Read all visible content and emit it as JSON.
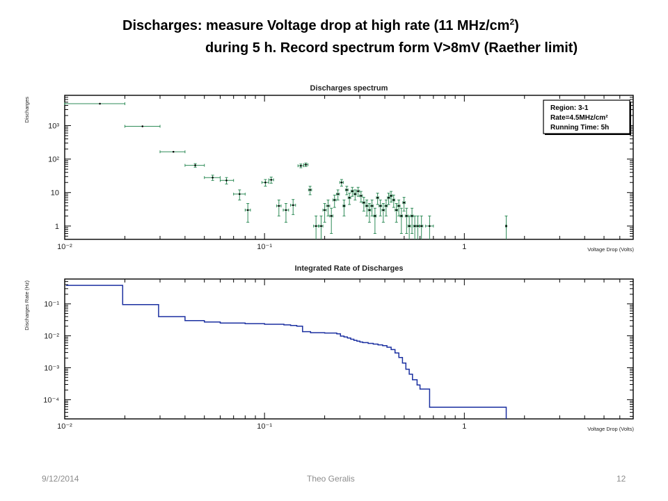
{
  "slide": {
    "title_line1_main": "Discharges: measure Voltage drop at high rate (11 MHz/cm",
    "title_line1_sup": "2",
    "title_line1_end": ")",
    "title_line2": "during 5 h. Record spectrum form V>8mV (Raether limit)",
    "footer_date": "9/12/2014",
    "footer_author": "Theo Geralis",
    "footer_page": "12"
  },
  "colors": {
    "spectrum_marker": "#2e8b57",
    "integrated_line": "#1a2fa0",
    "frame": "#000000"
  },
  "chart_data": [
    {
      "type": "scatter",
      "title": "Discharges spectrum",
      "xlabel": "Voltage Drop (Volts)",
      "ylabel": "Discharges",
      "xscale": "log",
      "yscale": "log",
      "xlim": [
        0.01,
        7
      ],
      "ylim": [
        0.4,
        8000
      ],
      "x_tick_labels": [
        "10⁻²",
        "10⁻¹",
        "1"
      ],
      "y_tick_labels": [
        "1",
        "10",
        "10²",
        "10³"
      ],
      "legend": {
        "placement": "top-right",
        "lines": [
          "Region: 3-1",
          "Rate=4.5MHz/cm²",
          "Running Time: 5h"
        ]
      },
      "points": [
        {
          "x": 0.015,
          "y": 4500,
          "xerr": [
            0.005,
            0.005
          ]
        },
        {
          "x": 0.0245,
          "y": 950,
          "xerr": [
            0.0045,
            0.0055
          ]
        },
        {
          "x": 0.035,
          "y": 165,
          "xerr": [
            0.005,
            0.005
          ]
        },
        {
          "x": 0.045,
          "y": 65,
          "xerr": [
            0.005,
            0.005
          ],
          "yerr": [
            8,
            8
          ]
        },
        {
          "x": 0.055,
          "y": 28,
          "xerr": [
            0.005,
            0.005
          ],
          "yerr": [
            5,
            5
          ]
        },
        {
          "x": 0.0645,
          "y": 23,
          "xerr": [
            0.0045,
            0.0055
          ],
          "yerr": [
            5,
            5
          ]
        },
        {
          "x": 0.075,
          "y": 9,
          "xerr": [
            0.005,
            0.005
          ],
          "yerr": [
            3,
            3
          ]
        },
        {
          "x": 0.0825,
          "y": 3,
          "xerr": [
            0.0025,
            0.0025
          ],
          "yerr": [
            1.7,
            1.7
          ]
        },
        {
          "x": 0.101,
          "y": 20,
          "xerr": [
            0.004,
            0.004
          ],
          "yerr": [
            4.5,
            4.5
          ]
        },
        {
          "x": 0.108,
          "y": 24,
          "xerr": [
            0.003,
            0.003
          ],
          "yerr": [
            5,
            5
          ]
        },
        {
          "x": 0.118,
          "y": 4,
          "xerr": [
            0.003,
            0.003
          ],
          "yerr": [
            2,
            2
          ]
        },
        {
          "x": 0.128,
          "y": 3,
          "xerr": [
            0.004,
            0.004
          ],
          "yerr": [
            1.7,
            1.7
          ]
        },
        {
          "x": 0.139,
          "y": 4.2,
          "xerr": [
            0.004,
            0.004
          ],
          "yerr": [
            2,
            2
          ]
        },
        {
          "x": 0.152,
          "y": 63,
          "xerr": [
            0.005,
            0.005
          ],
          "yerr": [
            8,
            8
          ]
        },
        {
          "x": 0.161,
          "y": 68,
          "xerr": [
            0.004,
            0.004
          ],
          "yerr": [
            8,
            8
          ]
        },
        {
          "x": 0.169,
          "y": 12,
          "xerr": [
            0.003,
            0.003
          ],
          "yerr": [
            3.4,
            3.4
          ]
        },
        {
          "x": 0.181,
          "y": 1,
          "xerr": [
            0.005,
            0.005
          ],
          "yerr": [
            0.6,
            1
          ]
        },
        {
          "x": 0.192,
          "y": 1,
          "xerr": [
            0.004,
            0.004
          ],
          "yerr": [
            0.6,
            1
          ]
        },
        {
          "x": 0.2,
          "y": 3,
          "xerr": [
            0.004,
            0.004
          ],
          "yerr": [
            1.7,
            1.7
          ]
        },
        {
          "x": 0.208,
          "y": 4,
          "xerr": [
            0.004,
            0.004
          ],
          "yerr": [
            2,
            2
          ]
        },
        {
          "x": 0.216,
          "y": 2,
          "xerr": [
            0.004,
            0.004
          ],
          "yerr": [
            1.4,
            1.4
          ]
        },
        {
          "x": 0.224,
          "y": 6,
          "xerr": [
            0.004,
            0.004
          ],
          "yerr": [
            2.4,
            2.4
          ]
        },
        {
          "x": 0.233,
          "y": 9,
          "xerr": [
            0.004,
            0.004
          ],
          "yerr": [
            3,
            3
          ]
        },
        {
          "x": 0.243,
          "y": 20,
          "xerr": [
            0.005,
            0.005
          ],
          "yerr": [
            4.5,
            4.5
          ]
        },
        {
          "x": 0.25,
          "y": 4,
          "xerr": [
            0.003,
            0.003
          ],
          "yerr": [
            2,
            2
          ]
        },
        {
          "x": 0.258,
          "y": 12,
          "xerr": [
            0.004,
            0.004
          ],
          "yerr": [
            3.4,
            3.4
          ]
        },
        {
          "x": 0.266,
          "y": 7,
          "xerr": [
            0.004,
            0.004
          ],
          "yerr": [
            2.6,
            2.6
          ]
        },
        {
          "x": 0.275,
          "y": 11,
          "xerr": [
            0.004,
            0.004
          ],
          "yerr": [
            3.3,
            3.3
          ]
        },
        {
          "x": 0.284,
          "y": 9,
          "xerr": [
            0.004,
            0.004
          ],
          "yerr": [
            3,
            3
          ]
        },
        {
          "x": 0.294,
          "y": 11,
          "xerr": [
            0.005,
            0.005
          ],
          "yerr": [
            3.3,
            3.3
          ]
        },
        {
          "x": 0.304,
          "y": 8,
          "xerr": [
            0.005,
            0.005
          ],
          "yerr": [
            2.8,
            2.8
          ]
        },
        {
          "x": 0.314,
          "y": 5,
          "xerr": [
            0.005,
            0.005
          ],
          "yerr": [
            2.2,
            2.2
          ]
        },
        {
          "x": 0.325,
          "y": 4,
          "xerr": [
            0.005,
            0.005
          ],
          "yerr": [
            2,
            2
          ]
        },
        {
          "x": 0.335,
          "y": 3,
          "xerr": [
            0.005,
            0.005
          ],
          "yerr": [
            1.7,
            1.7
          ]
        },
        {
          "x": 0.345,
          "y": 4,
          "xerr": [
            0.005,
            0.005
          ],
          "yerr": [
            2,
            2
          ]
        },
        {
          "x": 0.357,
          "y": 2,
          "xerr": [
            0.005,
            0.005
          ],
          "yerr": [
            1.4,
            1.4
          ]
        },
        {
          "x": 0.368,
          "y": 7,
          "xerr": [
            0.005,
            0.005
          ],
          "yerr": [
            2.6,
            2.6
          ]
        },
        {
          "x": 0.38,
          "y": 4,
          "xerr": [
            0.006,
            0.006
          ],
          "yerr": [
            2,
            2
          ]
        },
        {
          "x": 0.393,
          "y": 3,
          "xerr": [
            0.006,
            0.006
          ],
          "yerr": [
            1.7,
            1.7
          ]
        },
        {
          "x": 0.406,
          "y": 4,
          "xerr": [
            0.006,
            0.006
          ],
          "yerr": [
            2,
            2
          ]
        },
        {
          "x": 0.418,
          "y": 7,
          "xerr": [
            0.006,
            0.006
          ],
          "yerr": [
            2.6,
            2.6
          ]
        },
        {
          "x": 0.43,
          "y": 8,
          "xerr": [
            0.006,
            0.006
          ],
          "yerr": [
            2.8,
            2.8
          ]
        },
        {
          "x": 0.443,
          "y": 6,
          "xerr": [
            0.006,
            0.006
          ],
          "yerr": [
            2.4,
            2.4
          ]
        },
        {
          "x": 0.457,
          "y": 3,
          "xerr": [
            0.007,
            0.007
          ],
          "yerr": [
            1.7,
            1.7
          ]
        },
        {
          "x": 0.47,
          "y": 4,
          "xerr": [
            0.007,
            0.007
          ],
          "yerr": [
            2,
            2
          ]
        },
        {
          "x": 0.484,
          "y": 2,
          "xerr": [
            0.007,
            0.007
          ],
          "yerr": [
            1.4,
            1.4
          ]
        },
        {
          "x": 0.499,
          "y": 5,
          "xerr": [
            0.007,
            0.007
          ],
          "yerr": [
            2.2,
            2.2
          ]
        },
        {
          "x": 0.514,
          "y": 2,
          "xerr": [
            0.008,
            0.008
          ],
          "yerr": [
            1.4,
            1.4
          ]
        },
        {
          "x": 0.53,
          "y": 1,
          "xerr": [
            0.008,
            0.008
          ],
          "yerr": [
            0.6,
            1
          ]
        },
        {
          "x": 0.547,
          "y": 2,
          "xerr": [
            0.008,
            0.008
          ],
          "yerr": [
            1.4,
            1.4
          ]
        },
        {
          "x": 0.565,
          "y": 1,
          "xerr": [
            0.009,
            0.009
          ],
          "yerr": [
            0.6,
            1
          ]
        },
        {
          "x": 0.585,
          "y": 1,
          "xerr": [
            0.01,
            0.01
          ],
          "yerr": [
            0.6,
            1
          ]
        },
        {
          "x": 0.61,
          "y": 1,
          "xerr": [
            0.01,
            0.01
          ],
          "yerr": [
            0.6,
            1
          ]
        },
        {
          "x": 0.67,
          "y": 1,
          "xerr": [
            0.03,
            0.03
          ],
          "yerr": [
            0.6,
            1
          ]
        },
        {
          "x": 1.62,
          "y": 1,
          "xerr": [
            0.01,
            0.01
          ],
          "yerr": [
            0.6,
            1
          ]
        }
      ]
    },
    {
      "type": "line",
      "step": true,
      "title": "Integrated Rate of Discharges",
      "xlabel": "Voltage Drop (Volts)",
      "ylabel": "Discharges Rate (Hz)",
      "xscale": "log",
      "yscale": "log",
      "xlim": [
        0.01,
        7
      ],
      "ylim": [
        2.5e-05,
        0.6
      ],
      "x_tick_labels": [
        "10⁻²",
        "10⁻¹",
        "1"
      ],
      "y_tick_labels": [
        "10⁻⁴",
        "10⁻³",
        "10⁻²",
        "10⁻¹"
      ],
      "points": [
        {
          "x": 0.0102,
          "y": 0.38
        },
        {
          "x": 0.0195,
          "y": 0.095
        },
        {
          "x": 0.0295,
          "y": 0.04
        },
        {
          "x": 0.04,
          "y": 0.03
        },
        {
          "x": 0.05,
          "y": 0.027
        },
        {
          "x": 0.06,
          "y": 0.025
        },
        {
          "x": 0.08,
          "y": 0.024
        },
        {
          "x": 0.1,
          "y": 0.023
        },
        {
          "x": 0.125,
          "y": 0.022
        },
        {
          "x": 0.135,
          "y": 0.021
        },
        {
          "x": 0.145,
          "y": 0.02
        },
        {
          "x": 0.155,
          "y": 0.0135
        },
        {
          "x": 0.17,
          "y": 0.0125
        },
        {
          "x": 0.2,
          "y": 0.0122
        },
        {
          "x": 0.23,
          "y": 0.0115
        },
        {
          "x": 0.24,
          "y": 0.0098
        },
        {
          "x": 0.25,
          "y": 0.0092
        },
        {
          "x": 0.26,
          "y": 0.0085
        },
        {
          "x": 0.27,
          "y": 0.0078
        },
        {
          "x": 0.28,
          "y": 0.0072
        },
        {
          "x": 0.29,
          "y": 0.0068
        },
        {
          "x": 0.3,
          "y": 0.0064
        },
        {
          "x": 0.31,
          "y": 0.0061
        },
        {
          "x": 0.33,
          "y": 0.0058
        },
        {
          "x": 0.35,
          "y": 0.0055
        },
        {
          "x": 0.37,
          "y": 0.0052
        },
        {
          "x": 0.39,
          "y": 0.0049
        },
        {
          "x": 0.41,
          "y": 0.0044
        },
        {
          "x": 0.43,
          "y": 0.0037
        },
        {
          "x": 0.45,
          "y": 0.0029
        },
        {
          "x": 0.47,
          "y": 0.0021
        },
        {
          "x": 0.49,
          "y": 0.0014
        },
        {
          "x": 0.51,
          "y": 0.0009
        },
        {
          "x": 0.53,
          "y": 0.00063
        },
        {
          "x": 0.55,
          "y": 0.00042
        },
        {
          "x": 0.58,
          "y": 0.00029
        },
        {
          "x": 0.6,
          "y": 0.000215
        },
        {
          "x": 0.67,
          "y": 5.8e-05
        },
        {
          "x": 1.62,
          "y": 5.8e-05
        }
      ]
    }
  ]
}
